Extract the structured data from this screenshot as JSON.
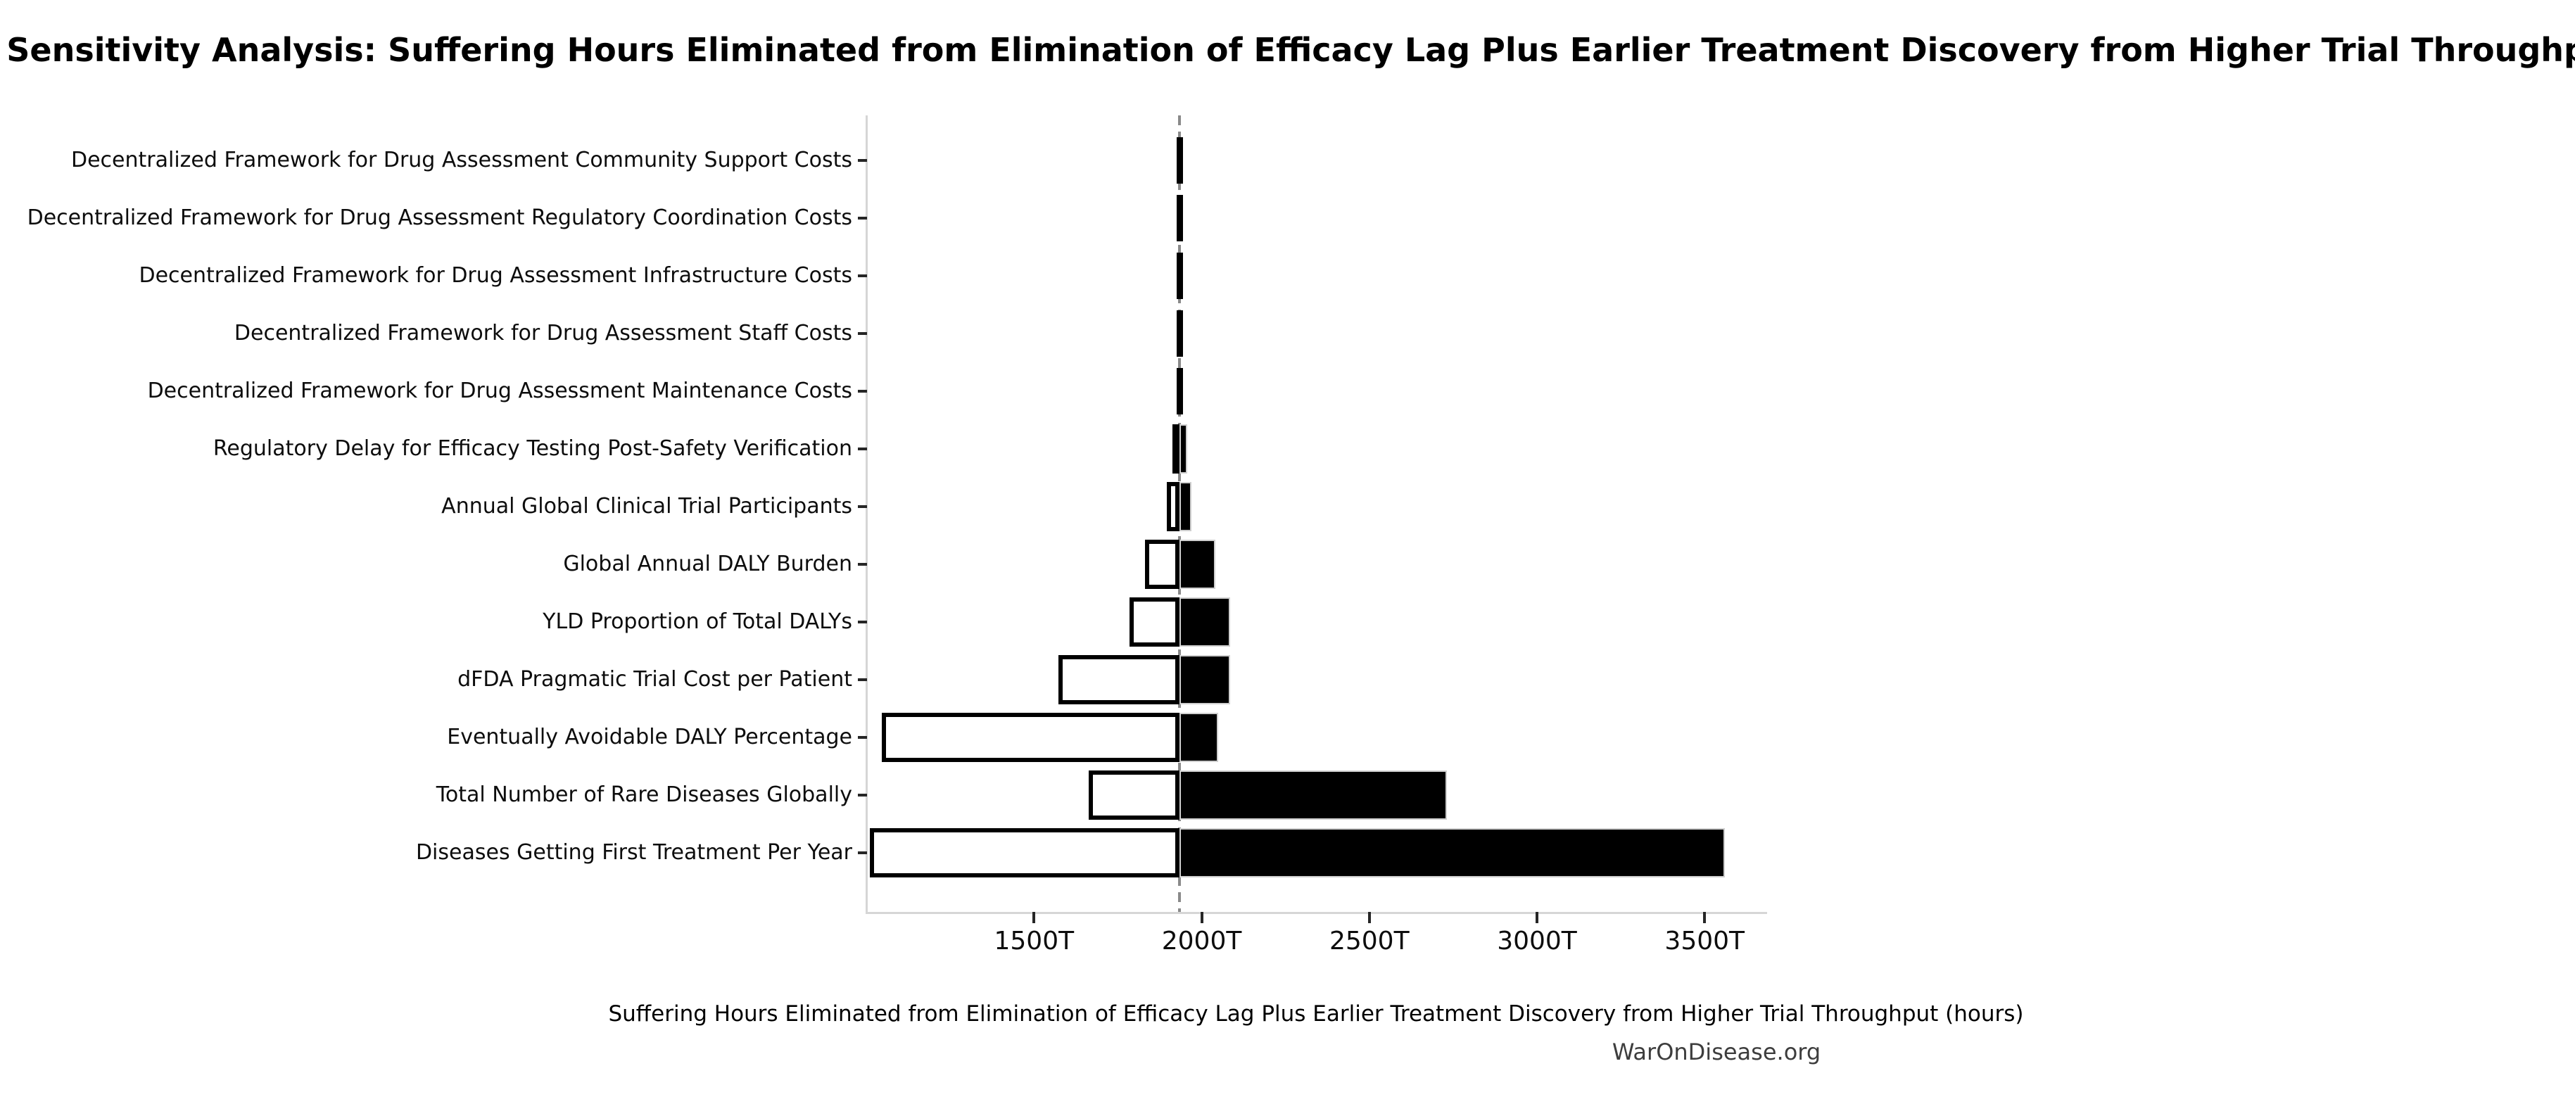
{
  "watermark": "WarOnDisease.org",
  "chart_data": {
    "type": "bar",
    "subtype": "tornado-sensitivity",
    "orientation": "horizontal",
    "title": "Sensitivity Analysis: Suffering Hours Eliminated from Elimination of Efficacy Lag Plus Earlier Treatment Discovery from Higher Trial Throughput",
    "xlabel": "Suffering Hours Eliminated from Elimination of Efficacy Lag Plus Earlier Treatment Discovery from Higher Trial Throughput (hours)",
    "unit_suffix": "T",
    "xlim_T": [
      1004,
      3680
    ],
    "base_value_T": 1933,
    "x_ticks": [
      {
        "value_T": 1500,
        "label": "1500T"
      },
      {
        "value_T": 2000,
        "label": "2000T"
      },
      {
        "value_T": 2500,
        "label": "2500T"
      },
      {
        "value_T": 3000,
        "label": "3000T"
      },
      {
        "value_T": 3500,
        "label": "3500T"
      }
    ],
    "grid": false,
    "legend": "none",
    "rows": [
      {
        "label": "Decentralized Framework for Drug Assessment Community Support Costs",
        "low_T": 1931,
        "high_T": 1936
      },
      {
        "label": "Decentralized Framework for Drug Assessment Regulatory Coordination Costs",
        "low_T": 1931,
        "high_T": 1936
      },
      {
        "label": "Decentralized Framework for Drug Assessment Infrastructure Costs",
        "low_T": 1931,
        "high_T": 1936
      },
      {
        "label": "Decentralized Framework for Drug Assessment Staff Costs",
        "low_T": 1931,
        "high_T": 1936
      },
      {
        "label": "Decentralized Framework for Drug Assessment Maintenance Costs",
        "low_T": 1931,
        "high_T": 1936
      },
      {
        "label": "Regulatory Delay for Efficacy Testing Post-Safety Verification",
        "low_T": 1912,
        "high_T": 1957
      },
      {
        "label": "Annual Global Clinical Trial Participants",
        "low_T": 1895,
        "high_T": 1970
      },
      {
        "label": "Global Annual DALY Burden",
        "low_T": 1831,
        "high_T": 2040
      },
      {
        "label": "YLD Proportion of Total DALYs",
        "low_T": 1785,
        "high_T": 2085
      },
      {
        "label": "dFDA Pragmatic Trial Cost per Patient",
        "low_T": 1572,
        "high_T": 2085
      },
      {
        "label": "Eventually Avoidable DALY Percentage",
        "low_T": 1045,
        "high_T": 2050
      },
      {
        "label": "Total Number of Rare Diseases Globally",
        "low_T": 1663,
        "high_T": 2731
      },
      {
        "label": "Diseases Getting First Treatment Per Year",
        "low_T": 1010,
        "high_T": 3560
      }
    ],
    "colors": {
      "low_bar_fill": "#ffffff",
      "low_bar_edge": "#000000",
      "high_bar_fill": "#000000",
      "high_bar_edge": "#cfcfcf",
      "baseline_dash": "#8a8a8a",
      "spine": "#d6d6d6",
      "tick": "#262626",
      "text": "#000000",
      "watermark_text": "#3d3d3d"
    }
  }
}
